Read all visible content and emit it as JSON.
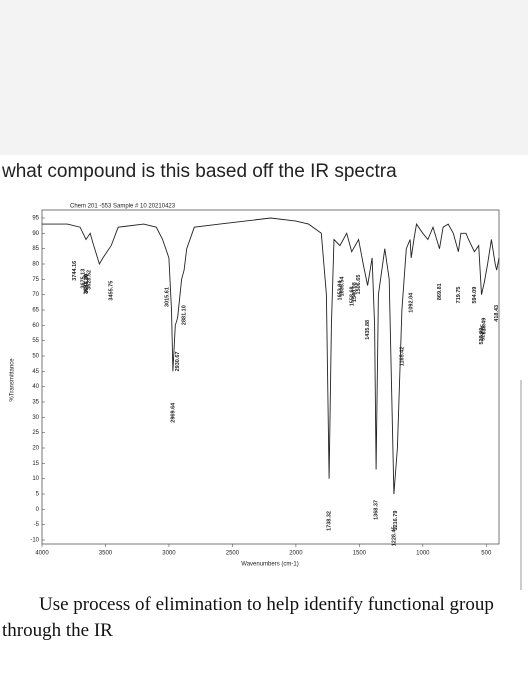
{
  "question": "what compound is this based off the IR spectra",
  "note": "Use process of elimination to help identify functional group through the IR",
  "chart_data": {
    "type": "line",
    "title": "Chem 201 -553 Sample # 10 20210423",
    "x_label": "Wavenumbers (cm-1)",
    "y_label": "%Transmittance",
    "color": "#222222",
    "x": [
      4000,
      3800,
      3700,
      3653,
      3620,
      3600,
      3548,
      3520,
      3455,
      3400,
      3200,
      3100,
      3050,
      3000,
      2980,
      2969,
      2950,
      2935,
      2930,
      2900,
      2881,
      2860,
      2800,
      2600,
      2400,
      2200,
      2000,
      1900,
      1800,
      1760,
      1738,
      1720,
      1700,
      1653,
      1640,
      1600,
      1560,
      1506,
      1470,
      1435,
      1400,
      1380,
      1368,
      1350,
      1300,
      1265,
      1228,
      1200,
      1165,
      1130,
      1100,
      1092,
      1070,
      1050,
      1000,
      960,
      920,
      869,
      840,
      800,
      760,
      720,
      700,
      660,
      640,
      594,
      560,
      538,
      527,
      516,
      490,
      460,
      430,
      418,
      400
    ],
    "values": [
      93,
      93,
      92,
      88,
      90,
      87,
      80,
      82,
      86,
      92,
      93,
      92,
      88,
      82,
      65,
      45,
      60,
      62,
      63,
      75,
      78,
      85,
      92,
      93,
      94,
      95,
      94,
      93,
      90,
      70,
      10,
      60,
      88,
      86,
      87,
      90,
      84,
      88,
      80,
      73,
      82,
      60,
      13,
      70,
      85,
      75,
      5,
      20,
      65,
      85,
      88,
      82,
      88,
      93,
      90,
      88,
      92,
      85,
      92,
      93,
      90,
      84,
      90,
      90,
      88,
      84,
      86,
      70,
      72,
      74,
      80,
      88,
      80,
      78,
      82
    ],
    "xlim": [
      4000,
      400
    ],
    "ylim": [
      -10,
      95
    ],
    "xticks": [
      4000,
      3500,
      3000,
      2500,
      2000,
      1500,
      1000,
      500
    ],
    "yticks": [
      95,
      90,
      85,
      80,
      75,
      70,
      65,
      60,
      55,
      50,
      45,
      40,
      35,
      30,
      25,
      20,
      15,
      10,
      5,
      0,
      -5,
      -10
    ],
    "annotations": [
      {
        "x": 3744.16,
        "label": "3744.16"
      },
      {
        "x": 3675.13,
        "label": "3675.13"
      },
      {
        "x": 3653.1,
        "label": "3653.10"
      },
      {
        "x": 3648.8,
        "label": "3648.80"
      },
      {
        "x": 3628.52,
        "label": "3628.52"
      },
      {
        "x": 3455.75,
        "label": "3455.75"
      },
      {
        "x": 3015.61,
        "label": "3015.61"
      },
      {
        "x": 2969.64,
        "label": "2969.64"
      },
      {
        "x": 2930.67,
        "label": "2930.67"
      },
      {
        "x": 2881.1,
        "label": "2881.10"
      },
      {
        "x": 1738.32,
        "label": "1738.32"
      },
      {
        "x": 1653.04,
        "label": "1653.04"
      },
      {
        "x": 1635.54,
        "label": "1635.54"
      },
      {
        "x": 1558.68,
        "label": "1558.68"
      },
      {
        "x": 1540.08,
        "label": "1540.08"
      },
      {
        "x": 1506.65,
        "label": "1506.65"
      },
      {
        "x": 1435.88,
        "label": "1435.88"
      },
      {
        "x": 1368.37,
        "label": "1368.37"
      },
      {
        "x": 1228.45,
        "label": "1228.45"
      },
      {
        "x": 1216.79,
        "label": "1216.79"
      },
      {
        "x": 1165.42,
        "label": "1165.42"
      },
      {
        "x": 1092.04,
        "label": "1092.04"
      },
      {
        "x": 869.81,
        "label": "869.81"
      },
      {
        "x": 719.75,
        "label": "719.75"
      },
      {
        "x": 594.09,
        "label": "594.09"
      },
      {
        "x": 538.9,
        "label": "538.90"
      },
      {
        "x": 527.85,
        "label": "527.85"
      },
      {
        "x": 516.49,
        "label": "516.49"
      },
      {
        "x": 418.43,
        "label": "418.43"
      }
    ]
  }
}
